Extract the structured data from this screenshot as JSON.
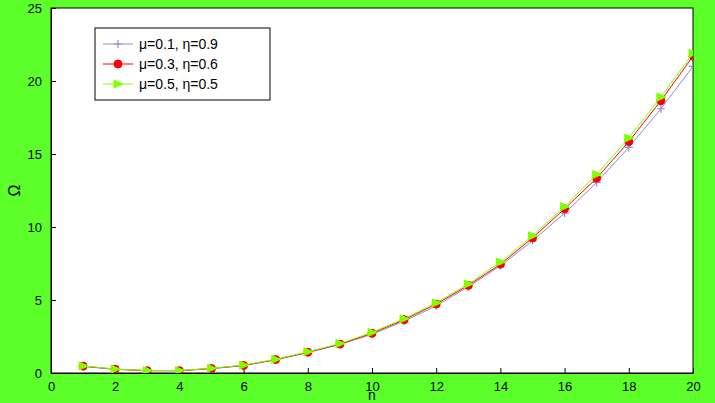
{
  "chart_data": {
    "type": "line",
    "x_label": "n",
    "y_label": "Ω",
    "x": [
      1,
      2,
      3,
      4,
      5,
      6,
      7,
      8,
      9,
      10,
      11,
      12,
      13,
      14,
      15,
      16,
      17,
      18,
      19,
      20
    ],
    "series": [
      {
        "name": "μ=0.1, η=0.9",
        "color": "#8c8cd0",
        "marker": "plus",
        "values": [
          0.45,
          0.25,
          0.15,
          0.15,
          0.3,
          0.5,
          0.9,
          1.4,
          1.95,
          2.65,
          3.55,
          4.6,
          5.9,
          7.35,
          9.05,
          10.95,
          13.05,
          15.45,
          18.1,
          21.0
        ]
      },
      {
        "name": "μ=0.3, η=0.6",
        "color": "#ff0000",
        "marker": "circle",
        "values": [
          0.47,
          0.26,
          0.16,
          0.16,
          0.31,
          0.52,
          0.92,
          1.42,
          1.98,
          2.72,
          3.65,
          4.72,
          6.0,
          7.45,
          9.25,
          11.25,
          13.35,
          15.85,
          18.65,
          21.7
        ]
      },
      {
        "name": "μ=0.5, η=0.5",
        "color": "#80ff00",
        "marker": "triangle-right",
        "values": [
          0.48,
          0.27,
          0.17,
          0.17,
          0.32,
          0.54,
          0.94,
          1.45,
          2.02,
          2.78,
          3.72,
          4.8,
          6.1,
          7.6,
          9.4,
          11.4,
          13.6,
          16.1,
          18.9,
          21.9
        ]
      }
    ],
    "xlim": [
      0,
      20
    ],
    "xticks": [
      0,
      2,
      4,
      6,
      8,
      10,
      12,
      14,
      16,
      18,
      20
    ],
    "ylim": [
      0,
      25
    ],
    "yticks": [
      0,
      5,
      10,
      15,
      20,
      25
    ],
    "grid": false,
    "legend": "upper left"
  }
}
